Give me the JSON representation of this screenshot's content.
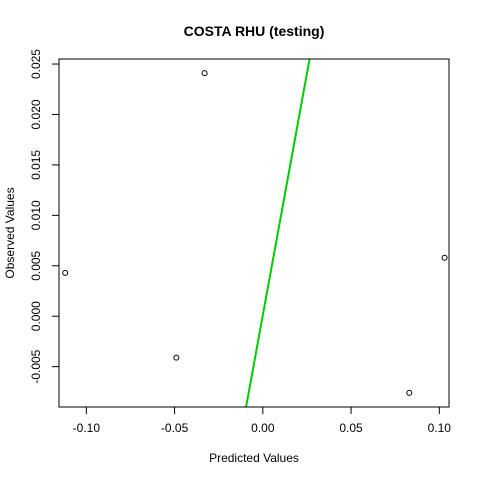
{
  "chart_data": {
    "type": "scatter",
    "title": "COSTA RHU (testing)",
    "xlabel": "Predicted Values",
    "ylabel": "Observed Values",
    "xlim": [
      -0.1155,
      0.1055
    ],
    "ylim": [
      -0.009,
      0.0255
    ],
    "x_ticks": [
      -0.1,
      -0.05,
      0.0,
      0.05,
      0.1
    ],
    "x_tick_labels": [
      "-0.10",
      "-0.05",
      "0.00",
      "0.05",
      "0.10"
    ],
    "y_ticks": [
      -0.005,
      0.0,
      0.005,
      0.01,
      0.015,
      0.02,
      0.025
    ],
    "y_tick_labels": [
      "-0.005",
      "0.000",
      "0.005",
      "0.010",
      "0.015",
      "0.020",
      "0.025"
    ],
    "points": [
      {
        "x": -0.112,
        "y": 0.0043
      },
      {
        "x": -0.049,
        "y": -0.0041
      },
      {
        "x": -0.033,
        "y": 0.0241
      },
      {
        "x": 0.083,
        "y": -0.0076
      },
      {
        "x": 0.103,
        "y": 0.0058
      }
    ],
    "fit_line": {
      "color": "#00cc00",
      "x": [
        -0.0095,
        0.0265
      ],
      "y": [
        -0.009,
        0.0255
      ]
    },
    "grid": false,
    "legend": "none"
  }
}
